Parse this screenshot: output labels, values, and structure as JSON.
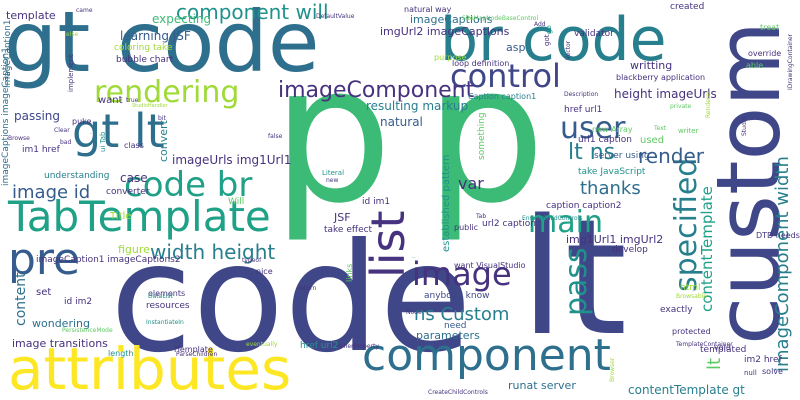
{
  "palette": {
    "dark_purple": "#46327e",
    "indigo": "#3f4788",
    "blue": "#365c8d",
    "teal_blue": "#2e6f8e",
    "teal": "#277f8e",
    "sea": "#21918c",
    "green_teal": "#1fa187",
    "green": "#3bbb75",
    "light_green": "#5ec962",
    "lime": "#a0da39",
    "yellow": "#fde725"
  },
  "words": [
    {
      "text": "code",
      "color": "#3f4788"
    },
    {
      "text": "p",
      "color": "#3bbb75"
    },
    {
      "text": "p",
      "color": "#3bbb75"
    },
    {
      "text": "lt",
      "color": "#3f4788"
    },
    {
      "text": "custom",
      "color": "#3f4788"
    },
    {
      "text": "gt code",
      "color": "#2e6f8e"
    },
    {
      "text": "br code",
      "color": "#277f8e"
    },
    {
      "text": "attributes",
      "color": "#fde725"
    },
    {
      "text": "component",
      "color": "#2e6f8e"
    },
    {
      "text": "TabTemplate",
      "color": "#1fa187"
    },
    {
      "text": "list",
      "color": "#46327e"
    },
    {
      "text": "gt lt",
      "color": "#2e6f8e"
    },
    {
      "text": "code br",
      "color": "#1fa187"
    },
    {
      "text": "control",
      "color": "#3f4788"
    },
    {
      "text": "user",
      "color": "#365c8d"
    },
    {
      "text": "rendering",
      "color": "#a0da39"
    },
    {
      "text": "imageComponent",
      "color": "#46327e"
    },
    {
      "text": "pre",
      "color": "#365c8d"
    },
    {
      "text": "image",
      "color": "#46327e"
    },
    {
      "text": "main",
      "color": "#1fa187"
    },
    {
      "text": "pass",
      "color": "#21918c"
    },
    {
      "text": "specified",
      "color": "#277f8e"
    },
    {
      "text": "component will",
      "color": "#21918c"
    },
    {
      "text": "width height",
      "color": "#277f8e"
    },
    {
      "text": "image id",
      "color": "#365c8d"
    },
    {
      "text": "render",
      "color": "#365c8d"
    },
    {
      "text": "thanks",
      "color": "#2e6f8e"
    },
    {
      "text": "ns Custom",
      "color": "#277f8e"
    },
    {
      "text": "lt ns",
      "color": "#277f8e"
    },
    {
      "text": "var",
      "color": "#46327e"
    },
    {
      "text": "height imageUrls",
      "color": "#46327e"
    },
    {
      "text": "imageComponent width",
      "color": "#277f8e"
    },
    {
      "text": "contentTemplate",
      "color": "#1fa187"
    },
    {
      "text": "content",
      "color": "#2e6f8e"
    },
    {
      "text": "lt",
      "color": "#5ec962"
    },
    {
      "text": "resulting markup",
      "color": "#277f8e"
    },
    {
      "text": "natural",
      "color": "#365c8d"
    },
    {
      "text": "expecting",
      "color": "#3bbb75"
    },
    {
      "text": "learning JSF",
      "color": "#365c8d"
    },
    {
      "text": "writting",
      "color": "#46327e"
    },
    {
      "text": "imageCaptions",
      "color": "#2e6f8e"
    },
    {
      "text": "imgUrl2 imageCaptions",
      "color": "#46327e"
    },
    {
      "text": "created",
      "color": "#46327e"
    },
    {
      "text": "template",
      "color": "#46327e"
    },
    {
      "text": "bubble chart",
      "color": "#46327e"
    },
    {
      "text": "coloring take",
      "color": "#a0da39"
    },
    {
      "text": "imageUrls img1Url1",
      "color": "#46327e"
    },
    {
      "text": "convert",
      "color": "#277f8e"
    },
    {
      "text": "passing",
      "color": "#3f4788"
    },
    {
      "text": "case",
      "color": "#46327e"
    },
    {
      "text": "understanding",
      "color": "#277f8e"
    },
    {
      "text": "im1 href",
      "color": "#46327e"
    },
    {
      "text": "imageCaption1 imageCaptions2",
      "color": "#46327e"
    },
    {
      "text": "figure",
      "color": "#a0da39"
    },
    {
      "text": "id im2",
      "color": "#46327e"
    },
    {
      "text": "image transitions",
      "color": "#46327e"
    },
    {
      "text": "wondering",
      "color": "#2e6f8e"
    },
    {
      "text": "JSF",
      "color": "#46327e"
    },
    {
      "text": "take effect",
      "color": "#46327e"
    },
    {
      "text": "established pattern",
      "color": "#21918c"
    },
    {
      "text": "id im1",
      "color": "#46327e"
    },
    {
      "text": "caption caption2",
      "color": "#46327e"
    },
    {
      "text": "img1Url1 imgUrl2",
      "color": "#46327e"
    },
    {
      "text": "take JavaScript",
      "color": "#21918c"
    },
    {
      "text": "server using",
      "color": "#365c8d"
    },
    {
      "text": "url1 caption",
      "color": "#46327e"
    },
    {
      "text": "Caption caption1",
      "color": "#277f8e"
    },
    {
      "text": "href url1",
      "color": "#46327e"
    },
    {
      "text": "url2 caption",
      "color": "#46327e"
    },
    {
      "text": "want VisualStudio",
      "color": "#46327e"
    },
    {
      "text": "anybody know",
      "color": "#3f4788"
    },
    {
      "text": "parameters",
      "color": "#2e6f8e"
    },
    {
      "text": "runat server",
      "color": "#2e6f8e"
    },
    {
      "text": "contentTemplate gt",
      "color": "#277f8e"
    },
    {
      "text": "href url2",
      "color": "#21918c"
    },
    {
      "text": "im2 href",
      "color": "#46327e"
    },
    {
      "text": "exactly",
      "color": "#46327e"
    },
    {
      "text": "templated",
      "color": "#46327e"
    },
    {
      "text": "blackberry application",
      "color": "#46327e"
    },
    {
      "text": "loop definition",
      "color": "#46327e"
    },
    {
      "text": "asp",
      "color": "#365c8d"
    },
    {
      "text": "validator",
      "color": "#46327e"
    },
    {
      "text": "natural way",
      "color": "#46327e"
    },
    {
      "text": "resources",
      "color": "#46327e"
    },
    {
      "text": "elements",
      "color": "#46327e"
    },
    {
      "text": "ITemplate",
      "color": "#46327e"
    },
    {
      "text": "Title",
      "color": "#a0da39"
    },
    {
      "text": "converter",
      "color": "#46327e"
    },
    {
      "text": "Will",
      "color": "#5ec962"
    },
    {
      "text": "set",
      "color": "#46327e"
    },
    {
      "text": "need",
      "color": "#365c8d"
    },
    {
      "text": "develop",
      "color": "#46327e"
    },
    {
      "text": "used",
      "color": "#5ec962"
    },
    {
      "text": "html",
      "color": "#a0da39"
    },
    {
      "text": "DTD needs",
      "color": "#46327e"
    },
    {
      "text": "treat",
      "color": "#5ec962"
    },
    {
      "text": "override",
      "color": "#46327e"
    },
    {
      "text": "able",
      "color": "#5ec962"
    },
    {
      "text": "solve",
      "color": "#46327e"
    },
    {
      "text": "void",
      "color": "#46327e"
    },
    {
      "text": "protected",
      "color": "#46327e"
    },
    {
      "text": "want",
      "color": "#46327e"
    },
    {
      "text": "puke",
      "color": "#46327e"
    },
    {
      "text": "implement",
      "color": "#46327e"
    },
    {
      "text": "imageCaption1",
      "color": "#2e6f8e"
    },
    {
      "text": "imageCaptions imageCaption1",
      "color": "#2e6f8e"
    },
    {
      "text": "something",
      "color": "#5ec962"
    },
    {
      "text": "public",
      "color": "#46327e"
    },
    {
      "text": "links",
      "color": "#5ec962"
    },
    {
      "text": "nice",
      "color": "#46327e"
    },
    {
      "text": "length",
      "color": "#21918c"
    },
    {
      "text": "class",
      "color": "#46327e"
    },
    {
      "text": "new Array",
      "color": "#5ec962"
    },
    {
      "text": "purpose",
      "color": "#a0da39"
    },
    {
      "text": "Literal",
      "color": "#21918c"
    },
    {
      "text": "go",
      "color": "#1fa187"
    },
    {
      "text": "Clear",
      "color": "#46327e"
    },
    {
      "text": "false",
      "color": "#46327e"
    },
    {
      "text": "PersistenceMode",
      "color": "#5ec962"
    },
    {
      "text": "DataList",
      "color": "#21918c"
    },
    {
      "text": "ParseChildren",
      "color": "#46327e"
    },
    {
      "text": "InstantiateIn",
      "color": "#21918c"
    },
    {
      "text": "InnerProperty",
      "color": "#46327e"
    },
    {
      "text": "eventually",
      "color": "#a0da39"
    },
    {
      "text": "TemplateContainer",
      "color": "#46327e"
    },
    {
      "text": "CreateChildControls",
      "color": "#46327e"
    },
    {
      "text": "EnsureChildControls",
      "color": "#21918c"
    },
    {
      "text": "DefaultValue",
      "color": "#46327e"
    },
    {
      "text": "SiteMapNodeBaseControl",
      "color": "#5ec962"
    },
    {
      "text": "ui Tab",
      "color": "#21918c"
    },
    {
      "text": "null",
      "color": "#46327e"
    },
    {
      "text": "writer",
      "color": "#5ec962"
    },
    {
      "text": "Text",
      "color": "#5ec962"
    },
    {
      "text": "Description",
      "color": "#46327e"
    },
    {
      "text": "Browsable",
      "color": "#a0da39"
    },
    {
      "text": "new",
      "color": "#46327e"
    },
    {
      "text": "typeof",
      "color": "#46327e"
    },
    {
      "text": "return",
      "color": "#46327e"
    },
    {
      "text": "Node",
      "color": "#46327e"
    },
    {
      "text": "Tab",
      "color": "#46327e"
    },
    {
      "text": "private",
      "color": "#5ec962"
    },
    {
      "text": "Add",
      "color": "#46327e"
    },
    {
      "text": "got",
      "color": "#46327e"
    },
    {
      "text": "came",
      "color": "#46327e"
    },
    {
      "text": "else",
      "color": "#a0da39"
    },
    {
      "text": "Browse",
      "color": "#46327e"
    },
    {
      "text": "Vector",
      "color": "#46327e"
    },
    {
      "text": "true",
      "color": "#46327e"
    },
    {
      "text": "IDrawingContainer",
      "color": "#46327e"
    },
    {
      "text": "StudioHandler",
      "color": "#a0da39"
    },
    {
      "text": "Studio",
      "color": "#46327e"
    },
    {
      "text": "Renderer",
      "color": "#a0da39"
    },
    {
      "text": "bad",
      "color": "#46327e"
    },
    {
      "text": "bit",
      "color": "#46327e"
    },
    {
      "text": "Browser",
      "color": "#a0da39"
    },
    {
      "text": "Title",
      "color": "#46327e"
    }
  ]
}
